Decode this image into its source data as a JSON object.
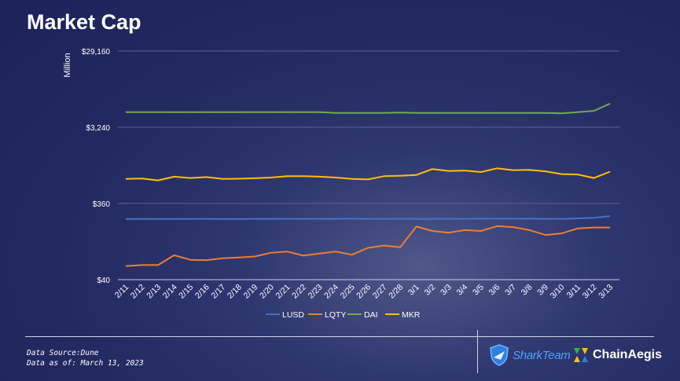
{
  "title": "Market Cap",
  "chart_data": {
    "type": "line",
    "title": "Market Cap",
    "ylabel": "Million",
    "yscale": "log",
    "ylim": [
      40,
      29160
    ],
    "yticks": [
      40,
      360,
      3240,
      29160
    ],
    "ytick_labels": [
      "$40",
      "$360",
      "$3,240",
      "$29,160"
    ],
    "categories": [
      "2/11",
      "2/12",
      "2/13",
      "2/14",
      "2/15",
      "2/16",
      "2/17",
      "2/18",
      "2/19",
      "2/20",
      "2/21",
      "2/22",
      "2/23",
      "2/24",
      "2/25",
      "2/26",
      "2/27",
      "2/28",
      "3/1",
      "3/2",
      "3/3",
      "3/4",
      "3/5",
      "3/6",
      "3/7",
      "3/8",
      "3/9",
      "3/10",
      "3/11",
      "3/12",
      "3/13"
    ],
    "series": [
      {
        "name": "LUSD",
        "color": "#4472c4",
        "values": [
          230,
          230,
          230,
          230,
          230,
          231,
          230,
          230,
          231,
          231,
          231,
          231,
          231,
          231,
          232,
          231,
          231,
          231,
          231,
          231,
          231,
          231,
          232,
          232,
          232,
          232,
          231,
          231,
          234,
          238,
          250
        ]
      },
      {
        "name": "LQTY",
        "color": "#ed7d31",
        "values": [
          59,
          61,
          61,
          81,
          71,
          70,
          74,
          76,
          78,
          87,
          90,
          80,
          85,
          90,
          82,
          100,
          107,
          102,
          185,
          163,
          155,
          167,
          163,
          187,
          182,
          167,
          145,
          152,
          175,
          180,
          180
        ]
      },
      {
        "name": "DAI",
        "color": "#70ad47",
        "values": [
          5010,
          5010,
          5010,
          5010,
          5010,
          5010,
          5010,
          5010,
          5010,
          5010,
          5010,
          5010,
          5010,
          4900,
          4900,
          4900,
          4900,
          4950,
          4900,
          4900,
          4900,
          4900,
          4900,
          4900,
          4900,
          4900,
          4900,
          4850,
          5000,
          5200,
          6400
        ]
      },
      {
        "name": "MKR",
        "color": "#ffc000",
        "values": [
          730,
          740,
          700,
          780,
          750,
          770,
          730,
          735,
          745,
          760,
          790,
          790,
          780,
          760,
          730,
          720,
          790,
          800,
          820,
          970,
          920,
          930,
          890,
          990,
          940,
          950,
          910,
          840,
          830,
          750,
          900
        ]
      }
    ],
    "legend": "bottom"
  },
  "footer": {
    "source": "Data Source:Dune",
    "as_of": "Data as of: March 13, 2023"
  },
  "logos": {
    "sharkteam": "SharkTeam",
    "chainaegis": "ChainAegis"
  }
}
